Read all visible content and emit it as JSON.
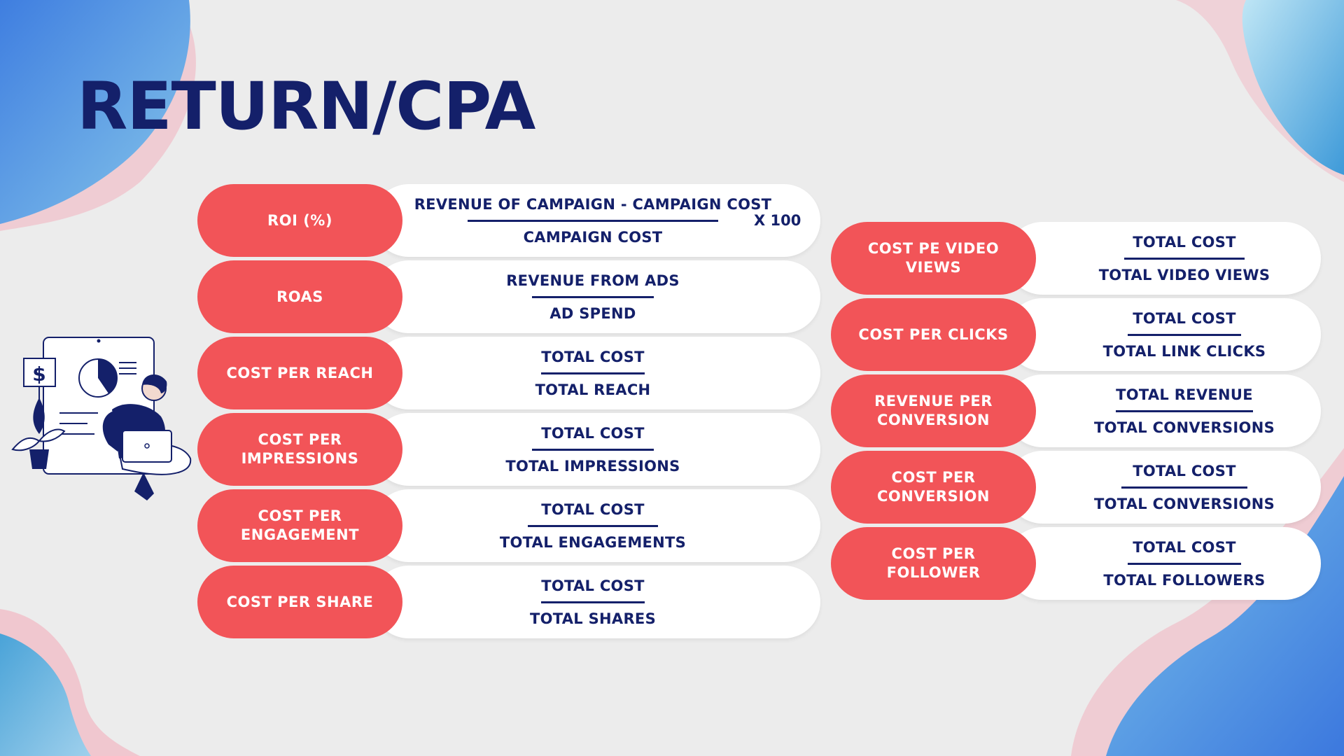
{
  "title": "RETURN/CPA",
  "colors": {
    "accent": "#f25458",
    "navy": "#14206a",
    "card": "#ffffff",
    "background": "#ececec"
  },
  "icons": [
    "dollar-sign-icon",
    "pie-chart-icon",
    "plant-icon",
    "person-with-laptop-icon"
  ],
  "left_metrics": [
    {
      "label": "ROI (%)",
      "numerator": "REVENUE OF CAMPAIGN - CAMPAIGN COST",
      "denominator": "CAMPAIGN COST",
      "multiplier": "X 100"
    },
    {
      "label": "ROAS",
      "numerator": "REVENUE FROM ADS",
      "denominator": "AD SPEND"
    },
    {
      "label": "COST PER REACH",
      "numerator": "TOTAL COST",
      "denominator": "TOTAL REACH"
    },
    {
      "label": "COST PER IMPRESSIONS",
      "numerator": "TOTAL COST",
      "denominator": "TOTAL IMPRESSIONS"
    },
    {
      "label": "COST PER ENGAGEMENT",
      "numerator": "TOTAL COST",
      "denominator": "TOTAL ENGAGEMENTS"
    },
    {
      "label": "COST PER SHARE",
      "numerator": "TOTAL COST",
      "denominator": "TOTAL SHARES"
    }
  ],
  "right_metrics": [
    {
      "label": "COST PE VIDEO VIEWS",
      "numerator": "TOTAL COST",
      "denominator": "TOTAL VIDEO VIEWS"
    },
    {
      "label": "COST PER CLICKS",
      "numerator": "TOTAL COST",
      "denominator": "TOTAL LINK CLICKS"
    },
    {
      "label": "REVENUE PER CONVERSION",
      "numerator": "TOTAL REVENUE",
      "denominator": "TOTAL CONVERSIONS"
    },
    {
      "label": "COST PER CONVERSION",
      "numerator": "TOTAL COST",
      "denominator": "TOTAL CONVERSIONS"
    },
    {
      "label": "COST PER FOLLOWER",
      "numerator": "TOTAL COST",
      "denominator": "TOTAL FOLLOWERS"
    }
  ]
}
